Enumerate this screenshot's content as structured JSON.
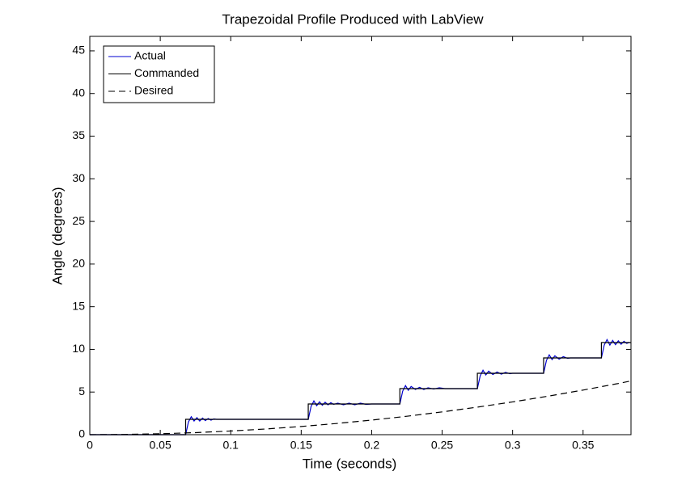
{
  "chart_data": {
    "type": "line",
    "title": "Trapezoidal Profile Produced with LabView",
    "xlabel": "Time (seconds)",
    "ylabel": "Angle (degrees)",
    "xlim": [
      0,
      0.384
    ],
    "ylim": [
      0,
      46.7
    ],
    "xticks": [
      0,
      0.05,
      0.1,
      0.15,
      0.2,
      0.25,
      0.3,
      0.35
    ],
    "yticks": [
      0,
      5,
      10,
      15,
      20,
      25,
      30,
      35,
      40,
      45
    ],
    "legend": "northwest",
    "series": [
      {
        "name": "Actual",
        "color": "#0000d0",
        "linestyle": "solid",
        "x": [
          0,
          0.068,
          0.07,
          0.072,
          0.074,
          0.076,
          0.078,
          0.08,
          0.082,
          0.084,
          0.086,
          0.088,
          0.09,
          0.155,
          0.157,
          0.159,
          0.161,
          0.163,
          0.165,
          0.167,
          0.169,
          0.171,
          0.173,
          0.176,
          0.18,
          0.184,
          0.188,
          0.192,
          0.196,
          0.2,
          0.22,
          0.222,
          0.224,
          0.226,
          0.228,
          0.231,
          0.234,
          0.237,
          0.24,
          0.244,
          0.248,
          0.252,
          0.275,
          0.277,
          0.279,
          0.281,
          0.283,
          0.286,
          0.289,
          0.292,
          0.295,
          0.298,
          0.3,
          0.322,
          0.324,
          0.326,
          0.328,
          0.33,
          0.333,
          0.336,
          0.339,
          0.341,
          0.363,
          0.365,
          0.367,
          0.369,
          0.371,
          0.373,
          0.375,
          0.377,
          0.379,
          0.381,
          0.383
        ],
        "values": [
          0,
          0,
          1.5,
          2.1,
          1.6,
          2.0,
          1.6,
          1.95,
          1.65,
          1.9,
          1.7,
          1.85,
          1.8,
          1.8,
          3.3,
          3.95,
          3.4,
          3.85,
          3.45,
          3.8,
          3.5,
          3.75,
          3.55,
          3.7,
          3.5,
          3.7,
          3.5,
          3.7,
          3.55,
          3.6,
          3.6,
          5.1,
          5.75,
          5.2,
          5.65,
          5.3,
          5.55,
          5.3,
          5.5,
          5.35,
          5.5,
          5.4,
          5.4,
          6.9,
          7.55,
          7.0,
          7.45,
          7.05,
          7.35,
          7.1,
          7.3,
          7.15,
          7.2,
          7.2,
          8.7,
          9.35,
          8.8,
          9.25,
          8.85,
          9.15,
          8.95,
          9.0,
          9.0,
          10.5,
          11.15,
          10.5,
          11.05,
          10.55,
          11.0,
          10.6,
          10.95,
          10.7,
          10.85
        ]
      },
      {
        "name": "Commanded",
        "color": "#000000",
        "linestyle": "solid",
        "x": [
          0,
          0.068,
          0.068,
          0.155,
          0.155,
          0.22,
          0.22,
          0.275,
          0.275,
          0.322,
          0.322,
          0.363,
          0.363,
          0.384
        ],
        "values": [
          0,
          0,
          1.8,
          1.8,
          3.6,
          3.6,
          5.4,
          5.4,
          7.2,
          7.2,
          9.0,
          9.0,
          10.8,
          10.8
        ]
      },
      {
        "name": "Desired",
        "color": "#000000",
        "linestyle": "dashed",
        "x": [
          0,
          0.025,
          0.05,
          0.075,
          0.1,
          0.125,
          0.15,
          0.175,
          0.2,
          0.225,
          0.25,
          0.275,
          0.3,
          0.325,
          0.35,
          0.375,
          0.384
        ],
        "values": [
          0,
          0.03,
          0.11,
          0.24,
          0.43,
          0.67,
          0.96,
          1.31,
          1.71,
          2.16,
          2.67,
          3.23,
          3.84,
          4.51,
          5.23,
          6.0,
          6.3
        ]
      }
    ]
  }
}
